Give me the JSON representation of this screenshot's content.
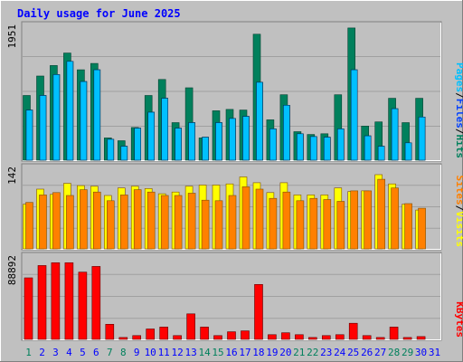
{
  "title": "Daily usage for June 2025",
  "colors": {
    "background": "#c0c0c0",
    "title": "#0000ff",
    "hits": "#00805c",
    "files": "#0040ff",
    "pages": "#00c0ff",
    "visits": "#ffff00",
    "sites": "#ff8000",
    "kbytes": "#ff0000",
    "weekend": "#00805c",
    "weekday": "#0000ff",
    "separator": "#000000"
  },
  "chart_data": {
    "type": "bar",
    "categories": [
      "1",
      "2",
      "3",
      "4",
      "5",
      "6",
      "7",
      "8",
      "9",
      "10",
      "11",
      "12",
      "13",
      "14",
      "15",
      "16",
      "17",
      "18",
      "19",
      "20",
      "21",
      "22",
      "23",
      "24",
      "25",
      "26",
      "27",
      "28",
      "29",
      "30",
      "31"
    ],
    "weekend_days": [
      1,
      7,
      8,
      14,
      15,
      21,
      22,
      28,
      29
    ],
    "panels": [
      {
        "id": "hits",
        "max_label": "1951",
        "ylim": [
          0,
          1951
        ],
        "legend": [
          {
            "text": "Pages",
            "color": "#00c0ff"
          },
          {
            "text": "/",
            "color": "#000000"
          },
          {
            "text": "Files",
            "color": "#0040ff"
          },
          {
            "text": "/",
            "color": "#000000"
          },
          {
            "text": "Hits",
            "color": "#00805c"
          }
        ],
        "series": [
          {
            "name": "Hits",
            "color": "#00805c",
            "values": [
              930,
              1210,
              1360,
              1540,
              1300,
              1390,
              320,
              280,
              470,
              930,
              1160,
              540,
              1040,
              320,
              710,
              730,
              720,
              1810,
              580,
              940,
              410,
              370,
              380,
              940,
              1900,
              490,
              550,
              890,
              540,
              890,
              0
            ]
          },
          {
            "name": "Files",
            "color": "#0040ff",
            "values": [
              720,
              930,
              1230,
              1420,
              1130,
              1300,
              300,
              200,
              460,
              690,
              890,
              460,
              540,
              330,
              540,
              600,
              630,
              1120,
              450,
              790,
              380,
              340,
              330,
              450,
              1300,
              350,
              200,
              740,
              250,
              620,
              0
            ]
          },
          {
            "name": "Pages",
            "color": "#00c0ff",
            "values": [
              720,
              930,
              1230,
              1420,
              1130,
              1300,
              300,
              200,
              460,
              690,
              890,
              460,
              540,
              330,
              540,
              600,
              630,
              1120,
              450,
              790,
              380,
              340,
              330,
              450,
              1300,
              350,
              200,
              740,
              250,
              620,
              0
            ]
          }
        ]
      },
      {
        "id": "visits",
        "max_label": "142",
        "ylim": [
          0,
          142
        ],
        "legend": [
          {
            "text": "Sites",
            "color": "#ff8000"
          },
          {
            "text": "/",
            "color": "#000000"
          },
          {
            "text": "Visits",
            "color": "#ffff00"
          }
        ],
        "series": [
          {
            "name": "Visits",
            "color": "#ffff00",
            "values": [
              77,
              103,
              94,
              113,
              109,
              108,
              92,
              105,
              108,
              104,
              95,
              98,
              108,
              110,
              110,
              112,
              124,
              114,
              97,
              114,
              93,
              93,
              93,
              105,
              99,
              100,
              128,
              112,
              77,
              67,
              0
            ]
          },
          {
            "name": "Sites",
            "color": "#ff8000",
            "values": [
              80,
              93,
              97,
              92,
              102,
              98,
              83,
              93,
              102,
              98,
              92,
              92,
              96,
              84,
              83,
              92,
              107,
              103,
              87,
              98,
              83,
              87,
              85,
              82,
              100,
              100,
              120,
              105,
              78,
              70,
              0
            ]
          }
        ]
      },
      {
        "id": "kbytes",
        "max_label": "88892",
        "ylim": [
          0,
          88892
        ],
        "legend": [
          {
            "text": "KBytes",
            "color": "#ff0000"
          }
        ],
        "series": [
          {
            "name": "KBytes",
            "color": "#ff0000",
            "values": [
              65000,
              78000,
              81000,
              81000,
              71000,
              77000,
              16000,
              2000,
              4000,
              11000,
              13000,
              4000,
              27000,
              13000,
              4000,
              8000,
              9000,
              58000,
              5000,
              7000,
              5000,
              2000,
              4000,
              5000,
              17000,
              4000,
              2000,
              13000,
              2000,
              3000,
              0
            ]
          }
        ]
      }
    ]
  }
}
